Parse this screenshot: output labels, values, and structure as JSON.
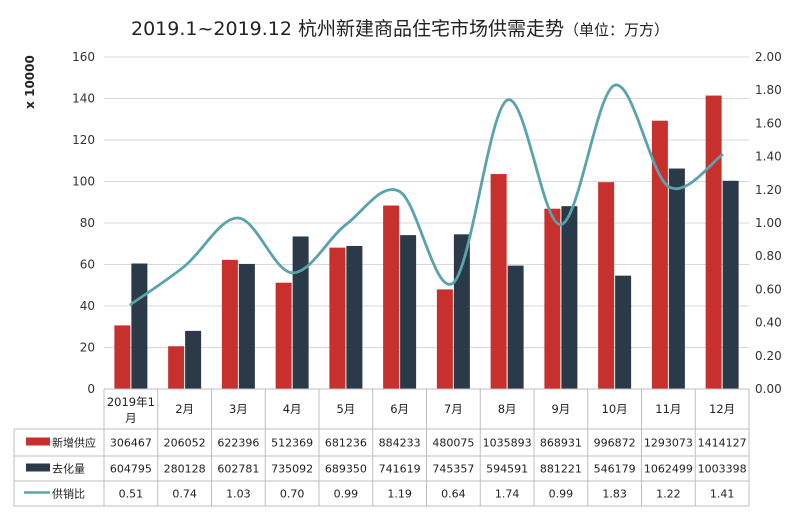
{
  "chart_data": {
    "type": "bar",
    "title": "2019.1~2019.12  杭州新建商品住宅市场供需走势",
    "subtitle": "（单位：万方）",
    "ylabel": "x 10000",
    "ylim": [
      0,
      160
    ],
    "y_ticks": [
      "0",
      "20",
      "40",
      "60",
      "80",
      "100",
      "120",
      "140",
      "160"
    ],
    "y2lim": [
      0,
      2
    ],
    "y2_ticks": [
      "0.00",
      "0.20",
      "0.40",
      "0.60",
      "0.80",
      "1.00",
      "1.20",
      "1.40",
      "1.60",
      "1.80",
      "2.00"
    ],
    "grid": true,
    "legend": "data-table",
    "categories": [
      "2019年1月",
      "2月",
      "3月",
      "4月",
      "5月",
      "6月",
      "7月",
      "8月",
      "9月",
      "10月",
      "11月",
      "12月"
    ],
    "series": [
      {
        "name": "新增供应",
        "type": "bar",
        "axis": "left",
        "color": "#c8302e",
        "values": [
          306467,
          206052,
          622396,
          512369,
          681236,
          884233,
          480075,
          1035893,
          868931,
          996872,
          1293073,
          1414127
        ],
        "labels": [
          "306467",
          "206052",
          "622396",
          "512369",
          "681236",
          "884233",
          "480075",
          "1035893",
          "868931",
          "996872",
          "1293073",
          "1414127"
        ]
      },
      {
        "name": "去化量",
        "type": "bar",
        "axis": "left",
        "color": "#2b3a48",
        "values": [
          604795,
          280128,
          602781,
          735092,
          689350,
          741619,
          745357,
          594591,
          881221,
          546179,
          1062499,
          1003398
        ],
        "labels": [
          "604795",
          "280128",
          "602781",
          "735092",
          "689350",
          "741619",
          "745357",
          "594591",
          "881221",
          "546179",
          "1062499",
          "1003398"
        ]
      },
      {
        "name": "供销比",
        "type": "line",
        "axis": "right",
        "color": "#5ba3ac",
        "values": [
          0.51,
          0.74,
          1.03,
          0.7,
          0.99,
          1.19,
          0.64,
          1.74,
          0.99,
          1.83,
          1.22,
          1.41
        ],
        "labels": [
          "0.51",
          "0.74",
          "1.03",
          "0.70",
          "0.99",
          "1.19",
          "0.64",
          "1.74",
          "0.99",
          "1.83",
          "1.22",
          "1.41"
        ]
      }
    ]
  }
}
